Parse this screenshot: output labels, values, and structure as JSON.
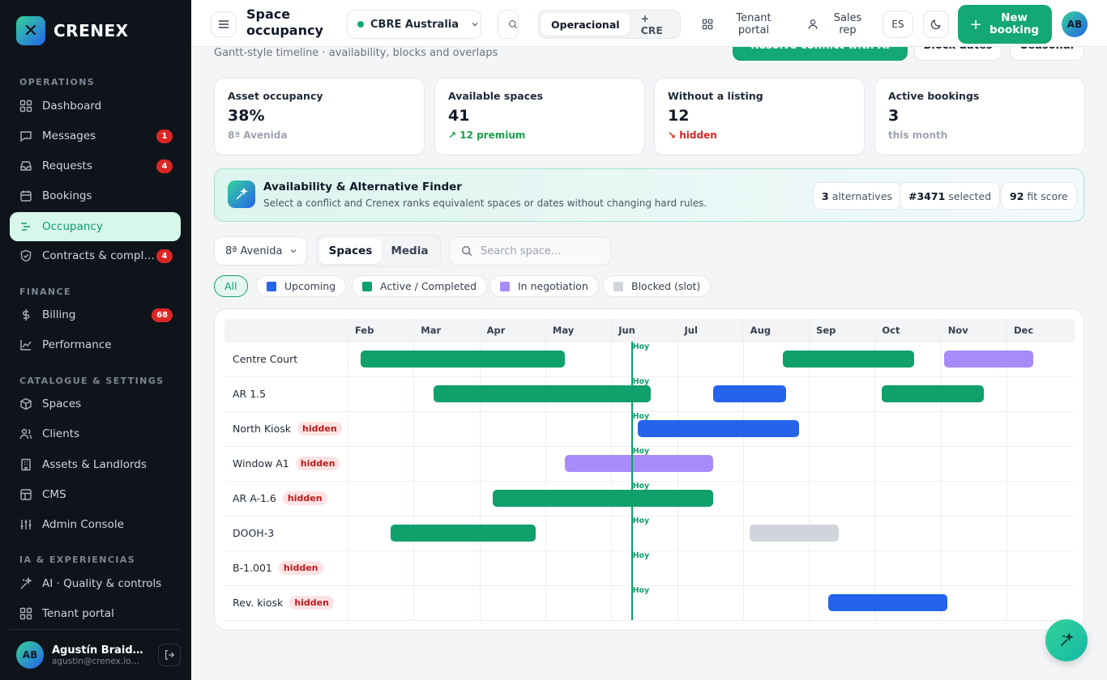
{
  "brand": {
    "name": "CRENEX"
  },
  "sidebar": {
    "sections": {
      "operations": "OPERATIONS",
      "finance": "FINANCE",
      "catalogue": "CATALOGUE & SETTINGS",
      "ia": "IA & EXPERIENCIAS"
    },
    "items": [
      {
        "label": "Dashboard",
        "icon": "grid-icon"
      },
      {
        "label": "Messages",
        "icon": "message-icon",
        "badge": "1"
      },
      {
        "label": "Requests",
        "icon": "inbox-icon",
        "badge": "4"
      },
      {
        "label": "Bookings",
        "icon": "calendar-icon"
      },
      {
        "label": "Occupancy",
        "icon": "gantt-icon"
      },
      {
        "label": "Contracts & compl…",
        "icon": "shield-icon",
        "badge": "4"
      },
      {
        "label": "Billing",
        "icon": "dollar-icon",
        "badge": "68"
      },
      {
        "label": "Performance",
        "icon": "chart-icon"
      },
      {
        "label": "Spaces",
        "icon": "cube-icon"
      },
      {
        "label": "Clients",
        "icon": "users-icon"
      },
      {
        "label": "Assets & Landlords",
        "icon": "building-icon"
      },
      {
        "label": "CMS",
        "icon": "layout-icon"
      },
      {
        "label": "Admin Console",
        "icon": "sliders-icon"
      },
      {
        "label": "AI · Quality & controls",
        "icon": "sparkles-icon"
      },
      {
        "label": "Tenant portal",
        "icon": "grid-icon"
      }
    ],
    "user": {
      "initials": "AB",
      "name": "Agustín Braid…",
      "email": "agustin@crenex.io…"
    }
  },
  "header": {
    "title": "Space occupancy",
    "org": "CBRE Australia",
    "mode_active": "Operacional",
    "mode_other": "+ CRE",
    "tenant_portal": "Tenant portal",
    "sales_rep": "Sales rep",
    "lang": "ES",
    "new_booking": "New booking",
    "avatar": "AB"
  },
  "page": {
    "subtitle": "Gantt-style timeline · availability, blocks and overlaps",
    "actions": {
      "resolve": "Resolve conflict with AI",
      "block": "Block dates",
      "seasonal": "Seasonal"
    }
  },
  "kpis": [
    {
      "title": "Asset occupancy",
      "value": "38%",
      "sub": "8ª Avenida",
      "tone": "#9ca3af"
    },
    {
      "title": "Available spaces",
      "value": "41",
      "sub": "12 premium",
      "tone": "#16a34a",
      "arrow": "↗"
    },
    {
      "title": "Without a listing",
      "value": "12",
      "sub": "hidden",
      "tone": "#dc2626",
      "arrow": "↘"
    },
    {
      "title": "Active bookings",
      "value": "3",
      "sub": "this month",
      "tone": "#9ca3af"
    }
  ],
  "finder": {
    "title": "Availability & Alternative Finder",
    "desc": "Select a conflict and Crenex ranks equivalent spaces or dates without changing hard rules.",
    "alt_count": "3",
    "alt_label": "alternatives",
    "selected_id": "#3471",
    "selected_label": "selected",
    "score": "92",
    "score_label": "fit score"
  },
  "filters": {
    "asset": "8ª Avenida",
    "tab_spaces": "Spaces",
    "tab_media": "Media",
    "search_placeholder": "Search space..."
  },
  "legend": [
    {
      "label": "All"
    },
    {
      "label": "Upcoming",
      "color": "#2563eb"
    },
    {
      "label": "Active / Completed",
      "color": "#10a06b"
    },
    {
      "label": "In negotiation",
      "color": "#a78bfa"
    },
    {
      "label": "Blocked (slot)",
      "color": "#d1d5db"
    }
  ],
  "gantt": {
    "months": [
      "Feb",
      "Mar",
      "Apr",
      "May",
      "Jun",
      "Jul",
      "Aug",
      "Sep",
      "Oct",
      "Nov",
      "Dec"
    ],
    "today_label": "Hoy",
    "today": 4.3,
    "hidden_label": "hidden",
    "rows": [
      {
        "name": "Centre Court",
        "hidden": false,
        "bars": [
          {
            "s": 0.2,
            "e": 3.3,
            "status": "active"
          },
          {
            "s": 6.6,
            "e": 8.6,
            "status": "active"
          },
          {
            "s": 9.05,
            "e": 10.4,
            "status": "negotiation"
          }
        ]
      },
      {
        "name": "AR 1.5",
        "hidden": false,
        "bars": [
          {
            "s": 1.3,
            "e": 4.6,
            "status": "active"
          },
          {
            "s": 5.55,
            "e": 6.65,
            "status": "upcoming"
          },
          {
            "s": 8.1,
            "e": 9.65,
            "status": "active"
          }
        ]
      },
      {
        "name": "North Kiosk",
        "hidden": true,
        "bars": [
          {
            "s": 4.4,
            "e": 6.85,
            "status": "upcoming"
          }
        ]
      },
      {
        "name": "Window A1",
        "hidden": true,
        "bars": [
          {
            "s": 3.3,
            "e": 5.55,
            "status": "negotiation"
          }
        ]
      },
      {
        "name": "AR A-1.6",
        "hidden": true,
        "bars": [
          {
            "s": 2.2,
            "e": 5.55,
            "status": "active"
          }
        ]
      },
      {
        "name": "DOOH-3",
        "hidden": false,
        "bars": [
          {
            "s": 0.65,
            "e": 2.85,
            "status": "active"
          },
          {
            "s": 6.1,
            "e": 7.45,
            "status": "blocked"
          }
        ]
      },
      {
        "name": "B-1.001",
        "hidden": true,
        "bars": []
      },
      {
        "name": "Rev. kiosk",
        "hidden": true,
        "bars": [
          {
            "s": 7.3,
            "e": 9.1,
            "status": "upcoming"
          }
        ]
      }
    ]
  },
  "colors": {
    "upcoming": "#2563eb",
    "active": "#10a06b",
    "negotiation": "#a78bfa",
    "blocked": "#d1d5db",
    "accent": "#14a874"
  }
}
